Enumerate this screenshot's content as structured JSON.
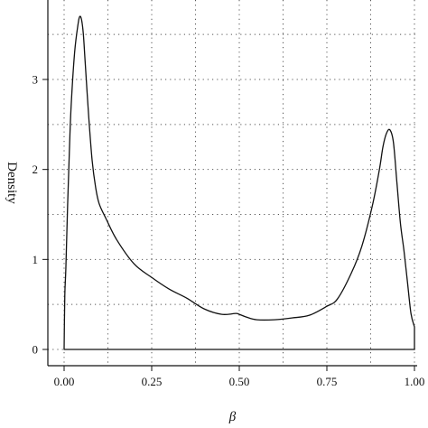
{
  "chart_data": {
    "type": "line",
    "title": "",
    "xlabel": "β",
    "ylabel": "Density",
    "xlim": [
      0.0,
      1.0
    ],
    "ylim": [
      0,
      3.9
    ],
    "x_ticks": [
      0.0,
      0.25,
      0.5,
      0.75,
      1.0
    ],
    "x_tick_labels": [
      "0.00",
      "0.25",
      "0.50",
      "0.75",
      "1.00"
    ],
    "y_ticks": [
      0,
      1,
      2,
      3
    ],
    "y_tick_labels": [
      "0",
      "1",
      "2",
      "3"
    ],
    "grid": true,
    "grid_style": "dotted",
    "minor_grid": true,
    "line_color": "#111111",
    "series": [
      {
        "x": [
          0.0,
          0.002,
          0.005,
          0.01,
          0.015,
          0.02,
          0.03,
          0.04,
          0.045,
          0.05,
          0.055,
          0.06,
          0.07,
          0.08,
          0.09,
          0.1,
          0.12,
          0.15,
          0.2,
          0.25,
          0.3,
          0.35,
          0.4,
          0.45,
          0.49,
          0.5,
          0.52,
          0.55,
          0.6,
          0.65,
          0.7,
          0.75,
          0.78,
          0.82,
          0.85,
          0.88,
          0.9,
          0.91,
          0.92,
          0.93,
          0.94,
          0.95,
          0.96,
          0.97,
          0.98,
          0.99,
          1.0
        ],
        "y": [
          0.0,
          0.6,
          0.9,
          1.6,
          2.2,
          2.7,
          3.3,
          3.62,
          3.7,
          3.66,
          3.5,
          3.2,
          2.6,
          2.1,
          1.8,
          1.62,
          1.45,
          1.22,
          0.95,
          0.8,
          0.67,
          0.57,
          0.45,
          0.39,
          0.4,
          0.39,
          0.36,
          0.33,
          0.33,
          0.35,
          0.38,
          0.48,
          0.56,
          0.85,
          1.15,
          1.6,
          2.0,
          2.25,
          2.4,
          2.44,
          2.3,
          1.85,
          1.4,
          1.1,
          0.75,
          0.4,
          0.25
        ]
      }
    ]
  }
}
